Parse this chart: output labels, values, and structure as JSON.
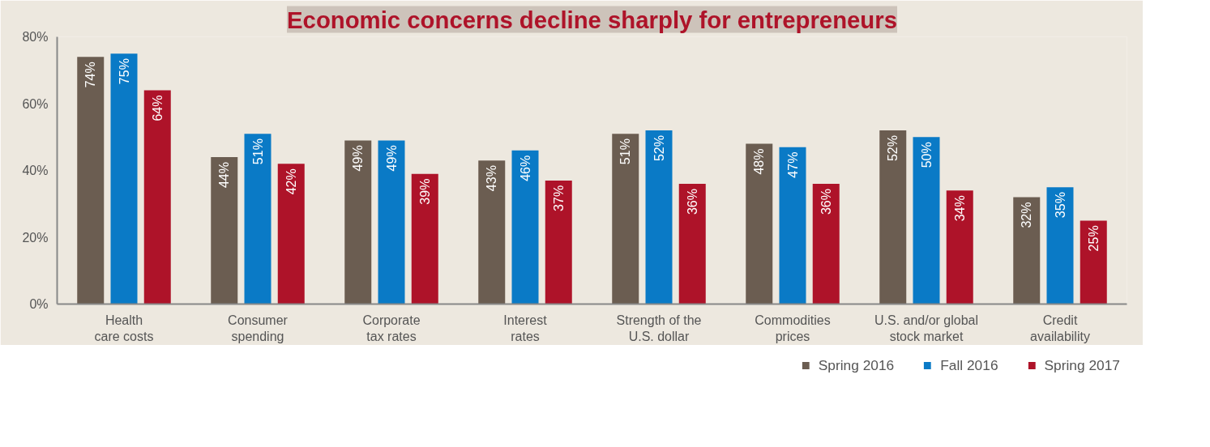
{
  "chart_data": {
    "type": "bar",
    "title": "Economic concerns decline sharply for entrepreneurs",
    "categories": [
      "Health\ncare costs",
      "Consumer\nspending",
      "Corporate\ntax rates",
      "Interest\nrates",
      "Strength of the\nU.S. dollar",
      "Commodities\nprices",
      "U.S. and/or global\nstock market",
      "Credit\navailability"
    ],
    "series": [
      {
        "name": "Spring 2016",
        "color": "#6b5d51",
        "values": [
          74,
          44,
          49,
          43,
          51,
          48,
          52,
          32
        ],
        "value_labels": [
          "74%",
          "44%",
          "49%",
          "43%",
          "51%",
          "48%",
          "52%",
          "32%"
        ]
      },
      {
        "name": "Fall 2016",
        "color": "#0a7ac6",
        "values": [
          75,
          51,
          49,
          46,
          52,
          47,
          50,
          35
        ],
        "value_labels": [
          "75%",
          "51%",
          "49%",
          "46%",
          "52%",
          "47%",
          "50%",
          "35%"
        ]
      },
      {
        "name": "Spring 2017",
        "color": "#ae1329",
        "values": [
          64,
          42,
          39,
          37,
          36,
          36,
          34,
          25
        ],
        "value_labels": [
          "64%",
          "42%",
          "39%",
          "37%",
          "36%",
          "36%",
          "34%",
          "25%"
        ]
      }
    ],
    "ylim": [
      0,
      80
    ],
    "yticks": [
      {
        "value": 0,
        "label": "0%"
      },
      {
        "value": 20,
        "label": "20%"
      },
      {
        "value": 40,
        "label": "40%"
      },
      {
        "value": 60,
        "label": "60%"
      },
      {
        "value": 80,
        "label": "80%"
      }
    ],
    "legend": "bottom right"
  }
}
